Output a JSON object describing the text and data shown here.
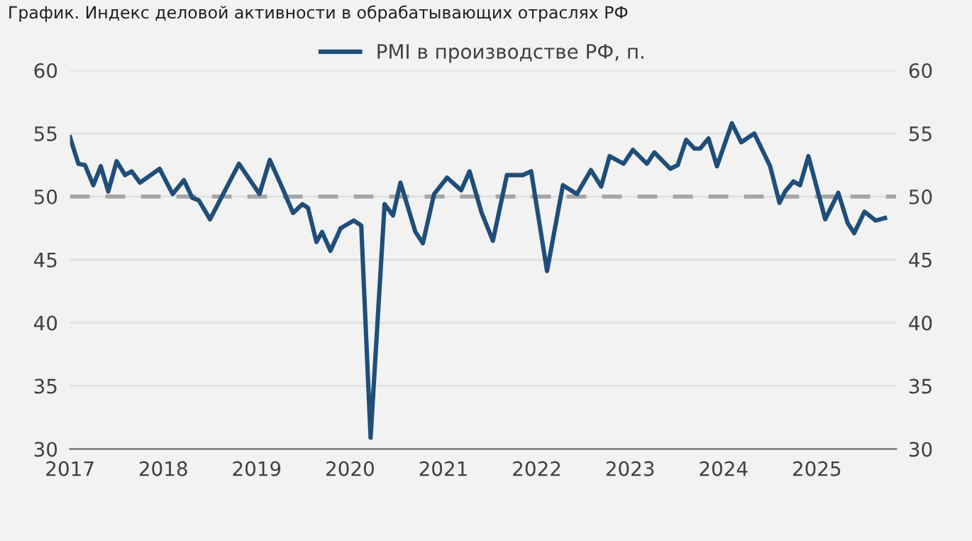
{
  "chart_data": {
    "type": "line",
    "title": "График. Индекс деловой активности в обрабатывающих отраслях РФ",
    "series": [
      {
        "name": "PMI в производстве РФ, п.",
        "color": "#1f4e79",
        "x": [
          2017.0,
          2017.09,
          2017.16,
          2017.25,
          2017.33,
          2017.41,
          2017.5,
          2017.59,
          2017.66,
          2017.75,
          2017.96,
          2018.1,
          2018.22,
          2018.31,
          2018.38,
          2018.5,
          2018.81,
          2019.03,
          2019.14,
          2019.25,
          2019.39,
          2019.49,
          2019.55,
          2019.64,
          2019.7,
          2019.79,
          2019.9,
          2020.04,
          2020.12,
          2020.22,
          2020.37,
          2020.46,
          2020.54,
          2020.7,
          2020.78,
          2020.9,
          2021.04,
          2021.19,
          2021.28,
          2021.41,
          2021.53,
          2021.68,
          2021.85,
          2021.94,
          2022.11,
          2022.28,
          2022.43,
          2022.58,
          2022.69,
          2022.78,
          2022.93,
          2023.03,
          2023.18,
          2023.26,
          2023.43,
          2023.51,
          2023.6,
          2023.69,
          2023.75,
          2023.84,
          2023.93,
          2024.09,
          2024.19,
          2024.33,
          2024.5,
          2024.6,
          2024.66,
          2024.75,
          2024.82,
          2024.91,
          2025.09,
          2025.23,
          2025.33,
          2025.4,
          2025.51,
          2025.63,
          2025.73
        ],
        "values": [
          54.7,
          52.6,
          52.5,
          50.9,
          52.4,
          50.4,
          52.8,
          51.7,
          52.0,
          51.1,
          52.2,
          50.2,
          51.3,
          49.9,
          49.7,
          48.2,
          52.6,
          50.2,
          52.9,
          51.1,
          48.7,
          49.4,
          49.1,
          46.4,
          47.2,
          45.7,
          47.5,
          48.1,
          47.7,
          30.9,
          49.4,
          48.5,
          51.1,
          47.2,
          46.3,
          50.2,
          51.5,
          50.5,
          52.0,
          48.7,
          46.5,
          51.7,
          51.7,
          52.0,
          44.1,
          50.9,
          50.2,
          52.1,
          50.8,
          53.2,
          52.6,
          53.7,
          52.6,
          53.5,
          52.2,
          52.5,
          54.5,
          53.8,
          53.8,
          54.6,
          52.4,
          55.8,
          54.3,
          55.0,
          52.4,
          49.5,
          50.4,
          51.2,
          50.9,
          53.2,
          48.2,
          50.3,
          47.9,
          47.1,
          48.8,
          48.1,
          48.3
        ]
      }
    ],
    "xlim": [
      2017,
      2025.85
    ],
    "xticks": [
      2017,
      2018,
      2019,
      2020,
      2021,
      2022,
      2023,
      2024,
      2025
    ],
    "ylim": [
      30,
      60
    ],
    "yticks": [
      30,
      35,
      40,
      45,
      50,
      55,
      60
    ],
    "y2lim": [
      30,
      60
    ],
    "y2ticks": [
      30,
      35,
      40,
      45,
      50,
      55,
      60
    ],
    "ref_lines": [
      {
        "axis": "y",
        "value": 50,
        "color": "#a6a6a6",
        "line_style": "dashed"
      }
    ],
    "grid": "y",
    "legend": "top"
  }
}
